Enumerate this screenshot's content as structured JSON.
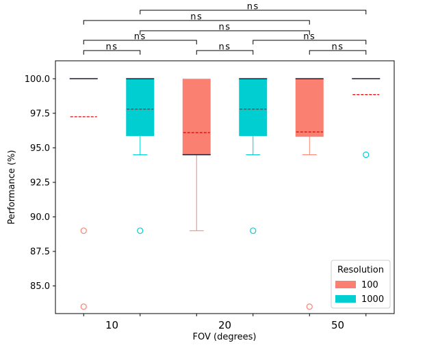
{
  "chart_data": {
    "type": "boxplot",
    "xlabel": "FOV (degrees)",
    "ylabel": "Performance (%)",
    "categories": [
      "10",
      "20",
      "50"
    ],
    "ylim": [
      83.0,
      101.3
    ],
    "yticks": [
      85.0,
      87.5,
      90.0,
      92.5,
      95.0,
      97.5,
      100.0
    ],
    "ytick_labels": [
      "85.0",
      "87.5",
      "90.0",
      "92.5",
      "95.0",
      "97.5",
      "100.0"
    ],
    "legend": {
      "title": "Resolution",
      "placement": "lower-right",
      "entries": [
        {
          "label": "100",
          "color": "#fa8072"
        },
        {
          "label": "1000",
          "color": "#00ced1"
        }
      ]
    },
    "series": [
      {
        "name": "100",
        "color": "#fa8072",
        "boxes": [
          {
            "category": "10",
            "q1": 100.0,
            "median": 100.0,
            "q3": 100.0,
            "whisker_low": 100.0,
            "whisker_high": 100.0,
            "mean": 97.25,
            "outliers": [
              89.0,
              83.5
            ]
          },
          {
            "category": "20",
            "q1": 94.5,
            "median": 94.5,
            "q3": 100.0,
            "whisker_low": 89.0,
            "whisker_high": 100.0,
            "mean": 96.1,
            "outliers": []
          },
          {
            "category": "50",
            "q1": 95.8,
            "median": 100.0,
            "q3": 100.0,
            "whisker_low": 94.5,
            "whisker_high": 100.0,
            "mean": 96.15,
            "outliers": [
              83.5
            ]
          }
        ]
      },
      {
        "name": "1000",
        "color": "#00ced1",
        "boxes": [
          {
            "category": "10",
            "q1": 95.85,
            "median": 100.0,
            "q3": 100.0,
            "whisker_low": 94.5,
            "whisker_high": 100.0,
            "mean": 97.8,
            "outliers": [
              89.0
            ]
          },
          {
            "category": "20",
            "q1": 95.85,
            "median": 100.0,
            "q3": 100.0,
            "whisker_low": 94.5,
            "whisker_high": 100.0,
            "mean": 97.8,
            "outliers": [
              89.0
            ]
          },
          {
            "category": "50",
            "q1": 100.0,
            "median": 100.0,
            "q3": 100.0,
            "whisker_low": 100.0,
            "whisker_high": 100.0,
            "mean": 98.85,
            "outliers": [
              94.5
            ]
          }
        ]
      }
    ],
    "significance_brackets": [
      {
        "from": "10 / 100",
        "to": "10 / 1000",
        "label": "ns"
      },
      {
        "from": "20 / 100",
        "to": "20 / 1000",
        "label": "ns"
      },
      {
        "from": "50 / 100",
        "to": "50 / 1000",
        "label": "ns"
      },
      {
        "from": "10 / 100",
        "to": "20 / 100",
        "label": "ns"
      },
      {
        "from": "20 / 1000",
        "to": "50 / 1000",
        "label": "ns"
      },
      {
        "from": "10 / 1000",
        "to": "50 / 100",
        "label": "ns"
      },
      {
        "from": "10 / 100",
        "to": "50 / 100",
        "label": "ns"
      },
      {
        "from": "10 / 1000",
        "to": "50 / 1000",
        "label": "ns"
      }
    ]
  }
}
